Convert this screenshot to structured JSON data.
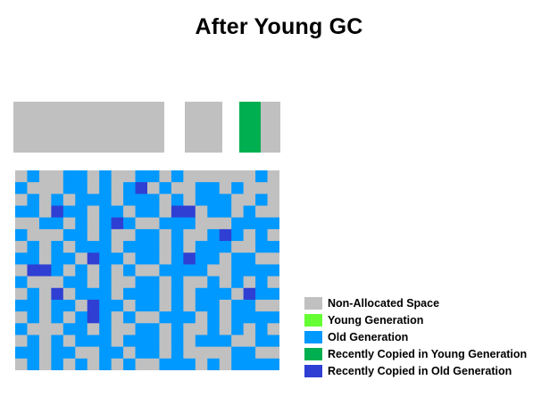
{
  "title": "After Young GC",
  "colors": {
    "non_allocated": "#c0c0c0",
    "young": "#66ff33",
    "old": "#0099ff",
    "recent_young": "#00b050",
    "recent_old": "#2f3fd4"
  },
  "young_space": {
    "eden_state": "non_allocated",
    "survivor_0_state": "non_allocated",
    "survivor_1_fill": {
      "recent_young": 0.52,
      "non_allocated": 0.48
    }
  },
  "old_heap": {
    "columns": 22,
    "rows": 17,
    "cells": [
      "GOGGOOGOGGOOGOGGGGGGOG",
      "OGGGOOGOGORGOGGOOGOGGG",
      "GOGOGOOOGOOOGOGOOOGGOG",
      "OOGROOGOOGOOGRRGOOGOGG",
      "GGOOGOGOROGGOOOGGGOOOO",
      "OGGGOOGOGGOOGOGGOROGOG",
      "GOGOGOOOGOOOGOGOOOGGOO",
      "OOGOOGROOGOOGOROOGOOGG",
      "GRROGOGOGOGGOOOOGGOOOO",
      "OGGGOOGOGGOOGOGGOGOGOG",
      "GOGRGOOOGOOOGOGOOOGROO",
      "OOGOOGROOGOOGOGOOGOOGG",
      "GOGOGOROGOGGOOOGOGOOOO",
      "OGGGOOGOGGOOGOGGOGOGOG",
      "GOGOGOOOGOOOGOGOOOGGOO",
      "OOGOOGGOOGOOGOGGGGOOGG",
      "GOGOGOGOGOGGOOOGOGOOOO"
    ]
  },
  "legend": [
    {
      "label": "Non-Allocated Space",
      "color": "#c0c0c0"
    },
    {
      "label": "Young Generation",
      "color": "#66ff33"
    },
    {
      "label": "Old Generation",
      "color": "#0099ff"
    },
    {
      "label": "Recently Copied in Young Generation",
      "color": "#00b050"
    },
    {
      "label": "Recently Copied in Old Generation",
      "color": "#2f3fd4"
    }
  ]
}
